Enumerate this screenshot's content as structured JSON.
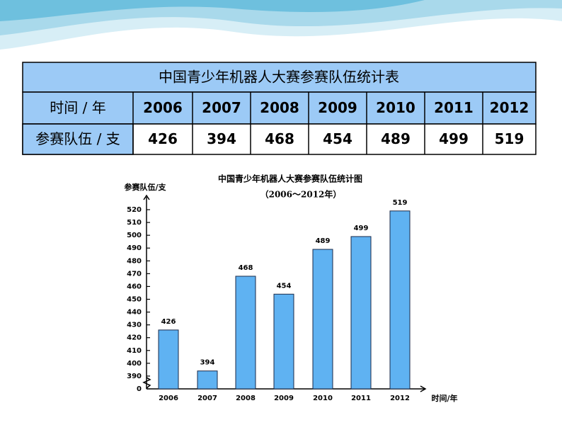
{
  "table": {
    "title": "中国青少年机器人大赛参赛队伍统计表",
    "rows": [
      [
        "时间 / 年",
        "2006",
        "2007",
        "2008",
        "2009",
        "2010",
        "2011",
        "2012"
      ],
      [
        "参赛队伍 / 支",
        "426",
        "394",
        "468",
        "454",
        "489",
        "499",
        "519"
      ]
    ]
  },
  "chart_data": {
    "type": "bar",
    "title": "中国青少年机器人大赛参赛队伍统计图",
    "subtitle": "（2006～2012年）",
    "y_label": "参赛队伍/支",
    "x_label": "时间/年",
    "categories": [
      "2006",
      "2007",
      "2008",
      "2009",
      "2010",
      "2011",
      "2012"
    ],
    "values": [
      426,
      394,
      468,
      454,
      489,
      499,
      519
    ],
    "color": "#5fb2f2",
    "ylim": [
      0,
      520
    ],
    "yticks": [
      0,
      390,
      400,
      410,
      420,
      430,
      440,
      450,
      460,
      470,
      480,
      490,
      500,
      510,
      520
    ],
    "axis_break": true
  }
}
